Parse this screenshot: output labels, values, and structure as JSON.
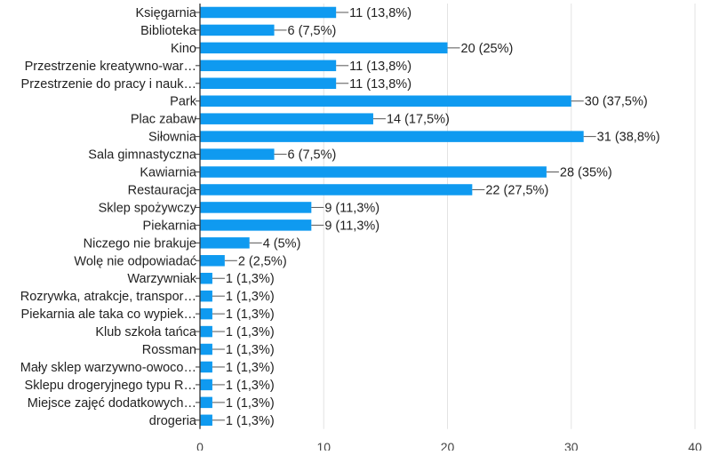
{
  "chart_data": {
    "type": "bar",
    "orientation": "horizontal",
    "categories": [
      "Księgarnia",
      "Biblioteka",
      "Kino",
      "Przestrzenie kreatywno-war…",
      "Przestrzenie do pracy i nauk…",
      "Park",
      "Plac zabaw",
      "Siłownia",
      "Sala gimnastyczna",
      "Kawiarnia",
      "Restauracja",
      "Sklep spożywczy",
      "Piekarnia",
      "Niczego nie brakuje",
      "Wolę nie odpowiadać",
      "Warzywniak",
      "Rozrywka, atrakcje, transpor…",
      "Piekarnia ale taka co wypiek…",
      "Klub szkoła tańca",
      "Rossman",
      "Mały sklep warzywno-owoco…",
      "Sklepu drogeryjnego typu R…",
      "Miejsce zajęć dodatkowych…",
      "drogeria"
    ],
    "values": [
      11,
      6,
      20,
      11,
      11,
      30,
      14,
      31,
      6,
      28,
      22,
      9,
      9,
      4,
      2,
      1,
      1,
      1,
      1,
      1,
      1,
      1,
      1,
      1
    ],
    "data_labels": [
      "11 (13,8%)",
      "6 (7,5%)",
      "20 (25%)",
      "11 (13,8%)",
      "11 (13,8%)",
      "30 (37,5%)",
      "14 (17,5%)",
      "31 (38,8%)",
      "6 (7,5%)",
      "28 (35%)",
      "22 (27,5%)",
      "9 (11,3%)",
      "9 (11,3%)",
      "4 (5%)",
      "2 (2,5%)",
      "1 (1,3%)",
      "1 (1,3%)",
      "1 (1,3%)",
      "1 (1,3%)",
      "1 (1,3%)",
      "1 (1,3%)",
      "1 (1,3%)",
      "1 (1,3%)",
      "1 (1,3%)"
    ],
    "xlim": [
      0,
      40
    ],
    "xticks": [
      "0",
      "10",
      "20",
      "30",
      "40"
    ],
    "grid": true,
    "bar_color": "#0f9af0",
    "title": "",
    "xlabel": "",
    "ylabel": ""
  }
}
